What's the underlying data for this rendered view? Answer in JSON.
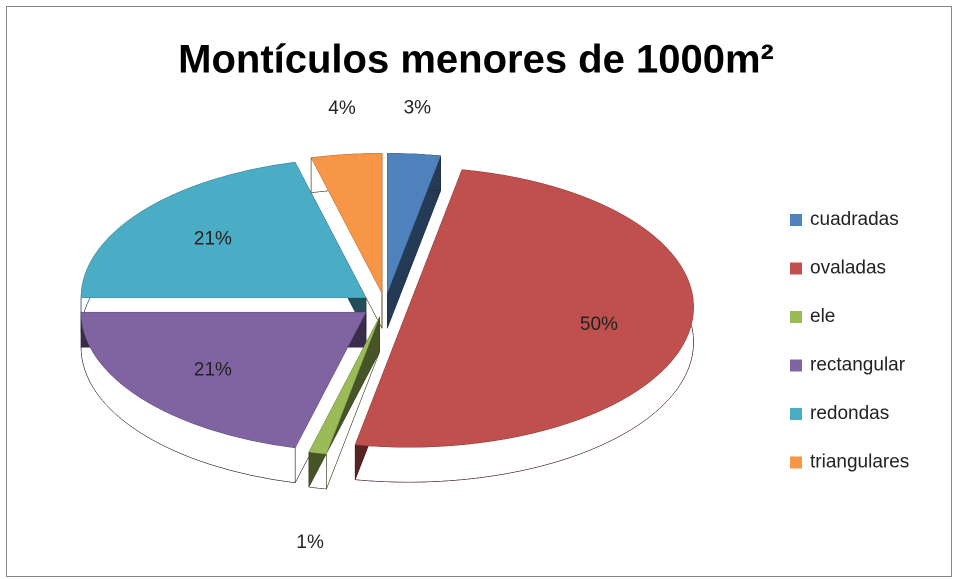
{
  "chart_data": {
    "type": "pie",
    "title": "Montículos menores de 1000m²",
    "categories": [
      "cuadradas",
      "ovaladas",
      "ele",
      "rectangular",
      "redondas",
      "triangulares"
    ],
    "values": [
      3,
      50,
      1,
      21,
      21,
      4
    ],
    "value_labels": [
      "3%",
      "50%",
      "1%",
      "21%",
      "21%",
      "4%"
    ],
    "colors": [
      "#4f81bd",
      "#c0504d",
      "#9bbb59",
      "#8064a2",
      "#4bacc6",
      "#f79646"
    ],
    "legend": "right"
  }
}
